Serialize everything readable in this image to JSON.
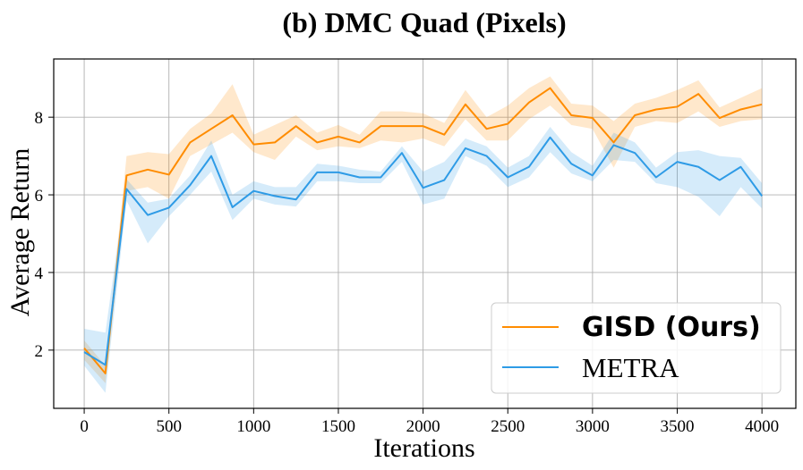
{
  "chart_data": {
    "type": "line",
    "title": "(b) DMC Quad (Pixels)",
    "xlabel": "Iterations",
    "ylabel": "Average Return",
    "xlim": [
      -180,
      4200
    ],
    "ylim": [
      0.5,
      9.5
    ],
    "xticks": [
      0,
      500,
      1000,
      1500,
      2000,
      2500,
      3000,
      3500,
      4000
    ],
    "yticks": [
      2,
      4,
      6,
      8
    ],
    "grid": true,
    "legend_position": "lower-right",
    "x": [
      0,
      125,
      250,
      375,
      500,
      625,
      750,
      875,
      1000,
      1125,
      1250,
      1375,
      1500,
      1625,
      1750,
      1875,
      2000,
      2125,
      2250,
      2375,
      2500,
      2625,
      2750,
      2875,
      3000,
      3125,
      3250,
      3375,
      3500,
      3625,
      3750,
      3875,
      4000
    ],
    "series": [
      {
        "name": "GISD (Ours)",
        "color": "#ff8c00",
        "values": [
          2.05,
          1.4,
          6.5,
          6.65,
          6.52,
          7.35,
          7.7,
          8.05,
          7.3,
          7.35,
          7.77,
          7.35,
          7.5,
          7.35,
          7.77,
          7.77,
          7.77,
          7.55,
          8.33,
          7.7,
          7.83,
          8.38,
          8.75,
          8.05,
          7.98,
          7.35,
          8.05,
          8.2,
          8.27,
          8.6,
          7.98,
          8.2,
          8.33
        ],
        "lower": [
          1.75,
          1.15,
          6.1,
          6.2,
          5.9,
          7.0,
          7.3,
          7.6,
          7.1,
          6.9,
          7.5,
          7.15,
          7.25,
          7.2,
          7.4,
          7.35,
          7.45,
          7.25,
          7.95,
          7.4,
          7.4,
          7.95,
          8.3,
          7.8,
          7.7,
          6.7,
          7.75,
          7.9,
          7.85,
          8.15,
          7.75,
          7.9,
          7.95
        ],
        "upper": [
          2.25,
          1.6,
          7.0,
          7.1,
          7.05,
          7.7,
          8.1,
          8.85,
          7.55,
          7.8,
          8.05,
          7.6,
          7.8,
          7.55,
          8.15,
          8.15,
          8.1,
          7.85,
          8.7,
          8.0,
          8.3,
          8.75,
          9.05,
          8.35,
          8.3,
          7.9,
          8.35,
          8.5,
          8.7,
          8.95,
          8.25,
          8.5,
          8.75
        ]
      },
      {
        "name": "METRA",
        "color": "#2e9be6",
        "values": [
          1.95,
          1.62,
          6.15,
          5.48,
          5.67,
          6.25,
          7.0,
          5.68,
          6.1,
          5.97,
          5.88,
          6.58,
          6.58,
          6.45,
          6.45,
          7.08,
          6.18,
          6.38,
          7.2,
          7.0,
          6.45,
          6.72,
          7.48,
          6.8,
          6.5,
          7.28,
          7.08,
          6.45,
          6.85,
          6.72,
          6.38,
          6.72,
          5.97
        ],
        "lower": [
          1.6,
          0.9,
          5.85,
          4.75,
          5.45,
          6.0,
          6.6,
          5.35,
          5.9,
          5.75,
          5.7,
          6.35,
          6.35,
          6.3,
          6.3,
          6.85,
          5.75,
          5.9,
          7.0,
          6.75,
          6.2,
          6.45,
          7.1,
          6.55,
          6.35,
          6.9,
          6.85,
          6.3,
          6.2,
          5.95,
          5.45,
          6.2,
          5.65
        ],
        "upper": [
          2.55,
          2.45,
          6.4,
          5.8,
          5.9,
          6.5,
          7.4,
          6.0,
          6.35,
          6.2,
          6.2,
          6.8,
          6.75,
          6.65,
          6.6,
          7.25,
          6.6,
          6.85,
          7.45,
          7.25,
          6.7,
          7.0,
          7.75,
          7.1,
          6.75,
          7.6,
          7.35,
          6.7,
          7.1,
          7.15,
          7.0,
          6.95,
          6.3
        ]
      }
    ]
  }
}
